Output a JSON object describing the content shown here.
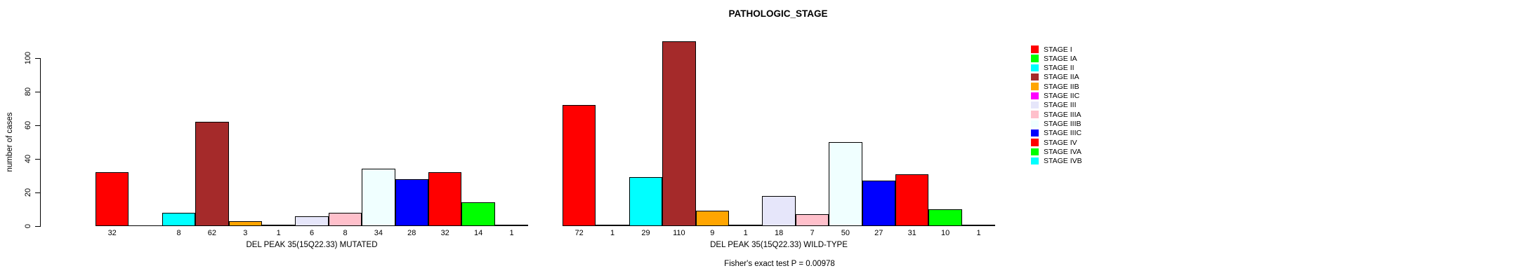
{
  "page": {
    "background": "#FFFFFF"
  },
  "chart_data": {
    "type": "bar",
    "title": "PATHOLOGIC_STAGE",
    "ylabel": "number of cases",
    "ylim": [
      0,
      100
    ],
    "yticks": [
      0,
      20,
      40,
      60,
      80,
      100
    ],
    "grid": false,
    "legend_position": "right",
    "categories": [
      "STAGE I",
      "STAGE IA",
      "STAGE II",
      "STAGE IIA",
      "STAGE IIB",
      "STAGE IIC",
      "STAGE III",
      "STAGE IIIA",
      "STAGE IIIB",
      "STAGE IIIC",
      "STAGE IV",
      "STAGE IVA",
      "STAGE IVB"
    ],
    "colors": [
      "#FF0000",
      "#00FF00",
      "#00FFFF",
      "#A52A2A",
      "#FFA500",
      "#FF00FF",
      "#E6E6FA",
      "#FFC0CB",
      "#F0FFFF",
      "#0000FF",
      "#FF0000",
      "#00FF00",
      "#00FFFF"
    ],
    "series": [
      {
        "name": "DEL PEAK 35(15Q22.33) MUTATED",
        "values": [
          32,
          0,
          8,
          62,
          3,
          1,
          6,
          8,
          34,
          28,
          32,
          14,
          1
        ]
      },
      {
        "name": "DEL PEAK 35(15Q22.33) WILD-TYPE",
        "values": [
          72,
          1,
          29,
          110,
          9,
          1,
          18,
          7,
          50,
          27,
          31,
          10,
          1
        ]
      }
    ],
    "bar_value_labels_shown": true,
    "zero_value_bars_unlabeled": true,
    "annotation": "Fisher's exact test P = 0.00978"
  }
}
